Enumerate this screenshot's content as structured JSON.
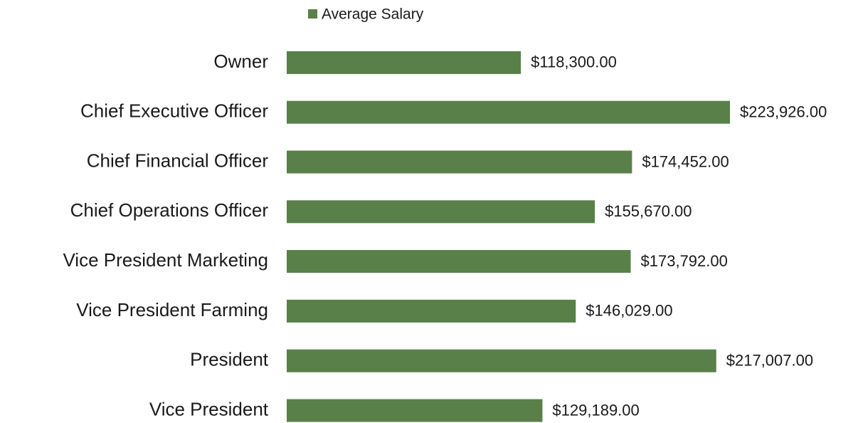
{
  "chart_data": {
    "type": "bar",
    "orientation": "horizontal",
    "series": [
      {
        "name": "Average Salary",
        "color": "#588048",
        "values": [
          118300,
          223926,
          174452,
          155670,
          173792,
          146029,
          217007,
          129189
        ],
        "value_labels": [
          "$118,300.00",
          "$223,926.00",
          "$174,452.00",
          "$155,670.00",
          "$173,792.00",
          "$146,029.00",
          "$217,007.00",
          "$129,189.00"
        ]
      }
    ],
    "categories": [
      "Owner",
      "Chief Executive Officer",
      "Chief Financial Officer",
      "Chief Operations Officer",
      "Vice President Marketing",
      "Vice President Farming",
      "President",
      "Vice President"
    ],
    "legend": "top"
  }
}
